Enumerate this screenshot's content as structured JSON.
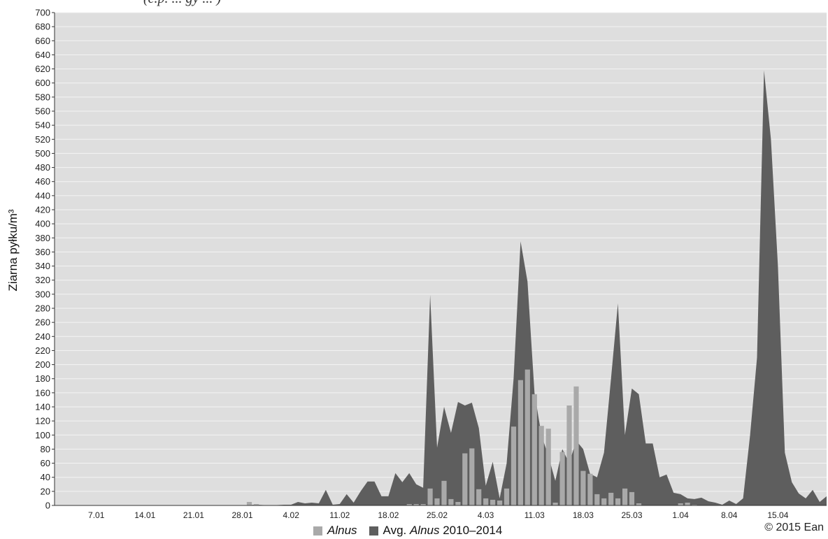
{
  "header": {
    "partial_caption": "(e.p. ... gy ... )"
  },
  "chart_data": {
    "type": "area",
    "ylabel": "Ziarna pyłku/m³",
    "ylim": [
      0,
      700
    ],
    "ytick_step": 20,
    "grid": true,
    "x_range": [
      1,
      112
    ],
    "x_unit": "day of year (1 = 1.01)",
    "xticks": [
      {
        "label": "7.01",
        "x": 7
      },
      {
        "label": "14.01",
        "x": 14
      },
      {
        "label": "21.01",
        "x": 21
      },
      {
        "label": "28.01",
        "x": 28
      },
      {
        "label": "4.02",
        "x": 35
      },
      {
        "label": "11.02",
        "x": 42
      },
      {
        "label": "18.02",
        "x": 49
      },
      {
        "label": "25.02",
        "x": 56
      },
      {
        "label": "4.03",
        "x": 63
      },
      {
        "label": "11.03",
        "x": 70
      },
      {
        "label": "18.03",
        "x": 77
      },
      {
        "label": "25.03",
        "x": 84
      },
      {
        "label": "1.04",
        "x": 91
      },
      {
        "label": "8.04",
        "x": 98
      },
      {
        "label": "15.04",
        "x": 105
      }
    ],
    "series": [
      {
        "name": "Avg. Alnus 2010–2014",
        "type": "area",
        "color": "#5e5e5e",
        "points": [
          [
            1,
            0
          ],
          [
            28,
            0
          ],
          [
            30,
            1
          ],
          [
            32,
            0
          ],
          [
            34,
            1
          ],
          [
            35,
            1
          ],
          [
            36,
            5
          ],
          [
            37,
            3
          ],
          [
            38,
            4
          ],
          [
            39,
            3
          ],
          [
            40,
            22
          ],
          [
            41,
            1
          ],
          [
            42,
            2
          ],
          [
            43,
            16
          ],
          [
            44,
            4
          ],
          [
            45,
            20
          ],
          [
            46,
            34
          ],
          [
            47,
            34
          ],
          [
            48,
            13
          ],
          [
            49,
            13
          ],
          [
            50,
            46
          ],
          [
            51,
            33
          ],
          [
            52,
            46
          ],
          [
            53,
            30
          ],
          [
            54,
            25
          ],
          [
            55,
            299
          ],
          [
            56,
            82
          ],
          [
            57,
            140
          ],
          [
            58,
            103
          ],
          [
            59,
            147
          ],
          [
            60,
            142
          ],
          [
            61,
            146
          ],
          [
            62,
            110
          ],
          [
            63,
            28
          ],
          [
            64,
            62
          ],
          [
            65,
            10
          ],
          [
            66,
            60
          ],
          [
            67,
            180
          ],
          [
            68,
            375
          ],
          [
            69,
            318
          ],
          [
            70,
            160
          ],
          [
            71,
            100
          ],
          [
            72,
            70
          ],
          [
            73,
            35
          ],
          [
            74,
            80
          ],
          [
            75,
            60
          ],
          [
            76,
            92
          ],
          [
            77,
            80
          ],
          [
            78,
            45
          ],
          [
            79,
            40
          ],
          [
            80,
            75
          ],
          [
            81,
            180
          ],
          [
            82,
            287
          ],
          [
            83,
            100
          ],
          [
            84,
            166
          ],
          [
            85,
            158
          ],
          [
            86,
            88
          ],
          [
            87,
            88
          ],
          [
            88,
            40
          ],
          [
            89,
            44
          ],
          [
            90,
            18
          ],
          [
            91,
            16
          ],
          [
            92,
            10
          ],
          [
            93,
            9
          ],
          [
            94,
            11
          ],
          [
            95,
            6
          ],
          [
            96,
            4
          ],
          [
            97,
            1
          ],
          [
            98,
            7
          ],
          [
            99,
            2
          ],
          [
            100,
            10
          ],
          [
            101,
            100
          ],
          [
            102,
            210
          ],
          [
            103,
            618
          ],
          [
            104,
            520
          ],
          [
            105,
            340
          ],
          [
            106,
            75
          ],
          [
            107,
            33
          ],
          [
            108,
            17
          ],
          [
            109,
            10
          ],
          [
            110,
            22
          ],
          [
            111,
            5
          ],
          [
            112,
            13
          ]
        ]
      },
      {
        "name": "Alnus",
        "type": "bar",
        "color": "#a9a9a9",
        "points": [
          [
            29,
            5
          ],
          [
            30,
            2
          ],
          [
            52,
            2
          ],
          [
            53,
            2
          ],
          [
            54,
            2
          ],
          [
            55,
            24
          ],
          [
            56,
            10
          ],
          [
            57,
            35
          ],
          [
            58,
            9
          ],
          [
            59,
            5
          ],
          [
            60,
            74
          ],
          [
            61,
            81
          ],
          [
            62,
            23
          ],
          [
            63,
            10
          ],
          [
            64,
            8
          ],
          [
            65,
            7
          ],
          [
            66,
            24
          ],
          [
            67,
            112
          ],
          [
            68,
            178
          ],
          [
            69,
            193
          ],
          [
            70,
            158
          ],
          [
            71,
            113
          ],
          [
            72,
            109
          ],
          [
            73,
            4
          ],
          [
            74,
            76
          ],
          [
            75,
            142
          ],
          [
            76,
            169
          ],
          [
            77,
            49
          ],
          [
            78,
            45
          ],
          [
            79,
            16
          ],
          [
            80,
            10
          ],
          [
            81,
            18
          ],
          [
            82,
            10
          ],
          [
            83,
            24
          ],
          [
            84,
            19
          ],
          [
            85,
            3
          ],
          [
            91,
            3
          ],
          [
            92,
            4
          ],
          [
            93,
            1
          ]
        ]
      }
    ],
    "legend": {
      "position": "bottom-center",
      "entries": [
        {
          "italic": "Alnus",
          "text": ""
        },
        {
          "prefix": "Avg. ",
          "italic": "Alnus",
          "text": " 2010–2014"
        }
      ]
    },
    "copyright": "© 2015 Ean"
  }
}
